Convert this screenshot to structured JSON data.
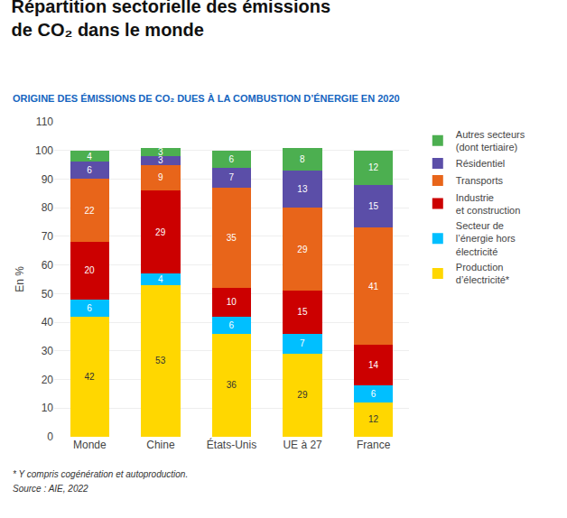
{
  "chart_data": {
    "type": "bar",
    "stacked": true,
    "title": "Répartition sectorielle des émissions\nde CO₂ dans le monde",
    "subtitle": "ORIGINE DES ÉMISSIONS DE CO₂ DUES À LA COMBUSTION D’ÉNERGIE EN 2020",
    "ylabel": "En %",
    "footnotes": [
      "* Y compris cogénération et autoproduction.",
      "Source : AIE, 2022"
    ],
    "categories": [
      "Monde",
      "Chine",
      "États-Unis",
      "UE à 27",
      "France"
    ],
    "series": [
      {
        "name": "Production\nd’électricité*",
        "color": "#FFD700",
        "values": [
          42,
          53,
          36,
          29,
          12
        ]
      },
      {
        "name": "Secteur de\nl’énergie hors\nélectricité",
        "color": "#00BFFF",
        "values": [
          6,
          4,
          6,
          7,
          6
        ]
      },
      {
        "name": "Industrie\net construction",
        "color": "#CC0000",
        "values": [
          20,
          29,
          10,
          15,
          14
        ]
      },
      {
        "name": "Transports",
        "color": "#E8651A",
        "values": [
          22,
          9,
          35,
          29,
          41
        ]
      },
      {
        "name": "Résidentiel",
        "color": "#5B4EA8",
        "values": [
          6,
          3,
          7,
          13,
          15
        ]
      },
      {
        "name": "Autres secteurs\n(dont tertiaire)",
        "color": "#4CAF50",
        "values": [
          4,
          3,
          6,
          8,
          12
        ]
      }
    ],
    "ylim": [
      0,
      110
    ],
    "yticks": [
      0,
      10,
      20,
      30,
      40,
      50,
      60,
      70,
      80,
      90,
      100,
      110
    ],
    "grid": true,
    "legend": "right",
    "data_labels": true
  }
}
